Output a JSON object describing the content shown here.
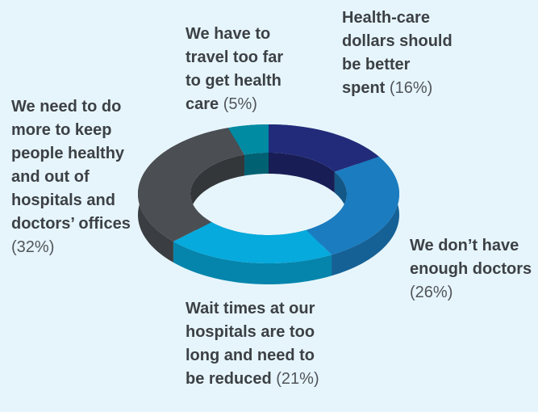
{
  "chart_data": {
    "type": "donut",
    "categories": [
      "Health-care dollars should be better spent",
      "We don’t have enough doctors",
      "Wait times at our hospitals are too long and need to be reduced",
      "We need to do more to keep people healthy and out of hospitals and doctors’ offices",
      "We have to travel too far to get health care"
    ],
    "values": [
      16,
      26,
      21,
      32,
      5
    ],
    "value_labels": [
      "(16%)",
      "(26%)",
      "(21%)",
      "(32%)",
      "(5%)"
    ],
    "colors": [
      "#222b7a",
      "#1b7cc0",
      "#06aadd",
      "#4b4e53",
      "#008ba3"
    ]
  }
}
